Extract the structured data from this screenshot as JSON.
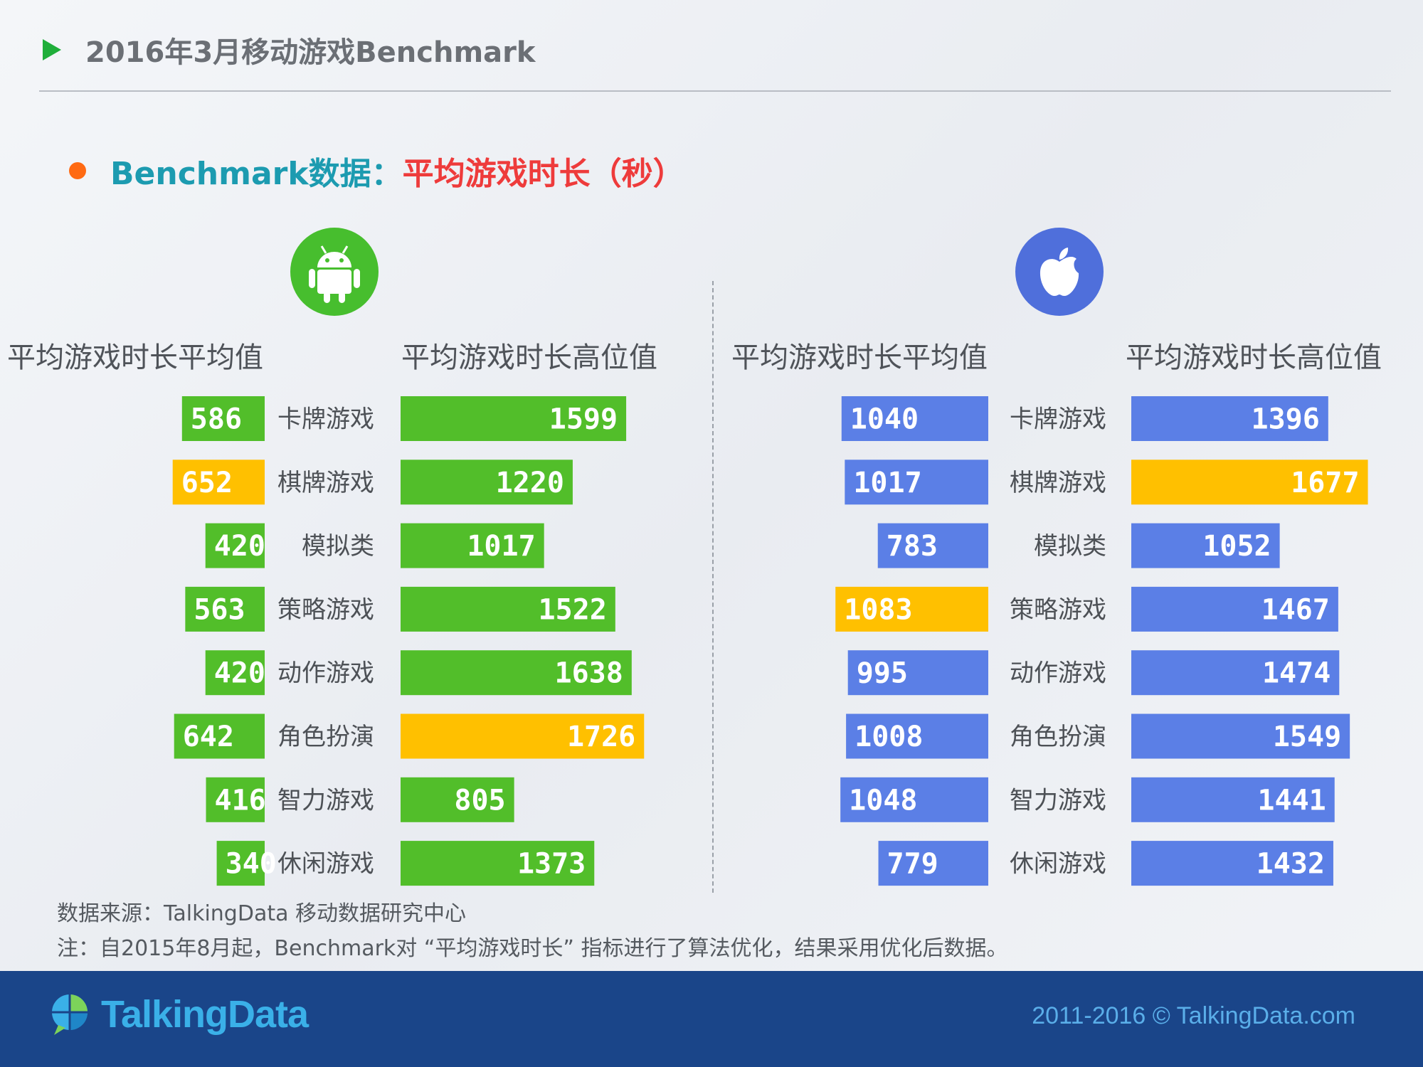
{
  "header": {
    "title": "2016年3月移动游戏Benchmark"
  },
  "subtitle": {
    "prefix": "Benchmark数据：",
    "metric": "平均游戏时长（秒）"
  },
  "icons": {
    "android": "android-logo-icon",
    "apple": "apple-logo-icon"
  },
  "colors": {
    "android_bar": "#52be2a",
    "ios_bar": "#5b7fe6",
    "highlight_bar": "#ffc000",
    "android_icon_bg": "#47be2e",
    "ios_icon_bg": "#4f6fdb",
    "footer_bg": "#1a4589"
  },
  "chart_data": [
    {
      "type": "bar",
      "platform": "Android",
      "categories": [
        "卡牌游戏",
        "棋牌游戏",
        "模拟类",
        "策略游戏",
        "动作游戏",
        "角色扮演",
        "智力游戏",
        "休闲游戏"
      ],
      "series": [
        {
          "name": "平均游戏时长平均值",
          "values": [
            586,
            652,
            420,
            563,
            420,
            642,
            416,
            340
          ],
          "highlight_index": 1
        },
        {
          "name": "平均游戏时长高位值",
          "values": [
            1599,
            1220,
            1017,
            1522,
            1638,
            1726,
            805,
            1373
          ],
          "highlight_index": 5
        }
      ]
    },
    {
      "type": "bar",
      "platform": "iOS",
      "categories": [
        "卡牌游戏",
        "棋牌游戏",
        "模拟类",
        "策略游戏",
        "动作游戏",
        "角色扮演",
        "智力游戏",
        "休闲游戏"
      ],
      "series": [
        {
          "name": "平均游戏时长平均值",
          "values": [
            1040,
            1017,
            783,
            1083,
            995,
            1008,
            1048,
            779
          ],
          "highlight_index": 3
        },
        {
          "name": "平均游戏时长高位值",
          "values": [
            1396,
            1677,
            1052,
            1467,
            1474,
            1549,
            1441,
            1432
          ],
          "highlight_index": 1
        }
      ]
    }
  ],
  "notes": {
    "source": "数据来源：TalkingData 移动数据研究中心",
    "remark": "注：自2015年8月起，Benchmark对 “平均游戏时长” 指标进行了算法优化，结果采用优化后数据。"
  },
  "footer": {
    "logo_text": "TalkingData",
    "copyright": "2011-2016 © TalkingData.com"
  }
}
